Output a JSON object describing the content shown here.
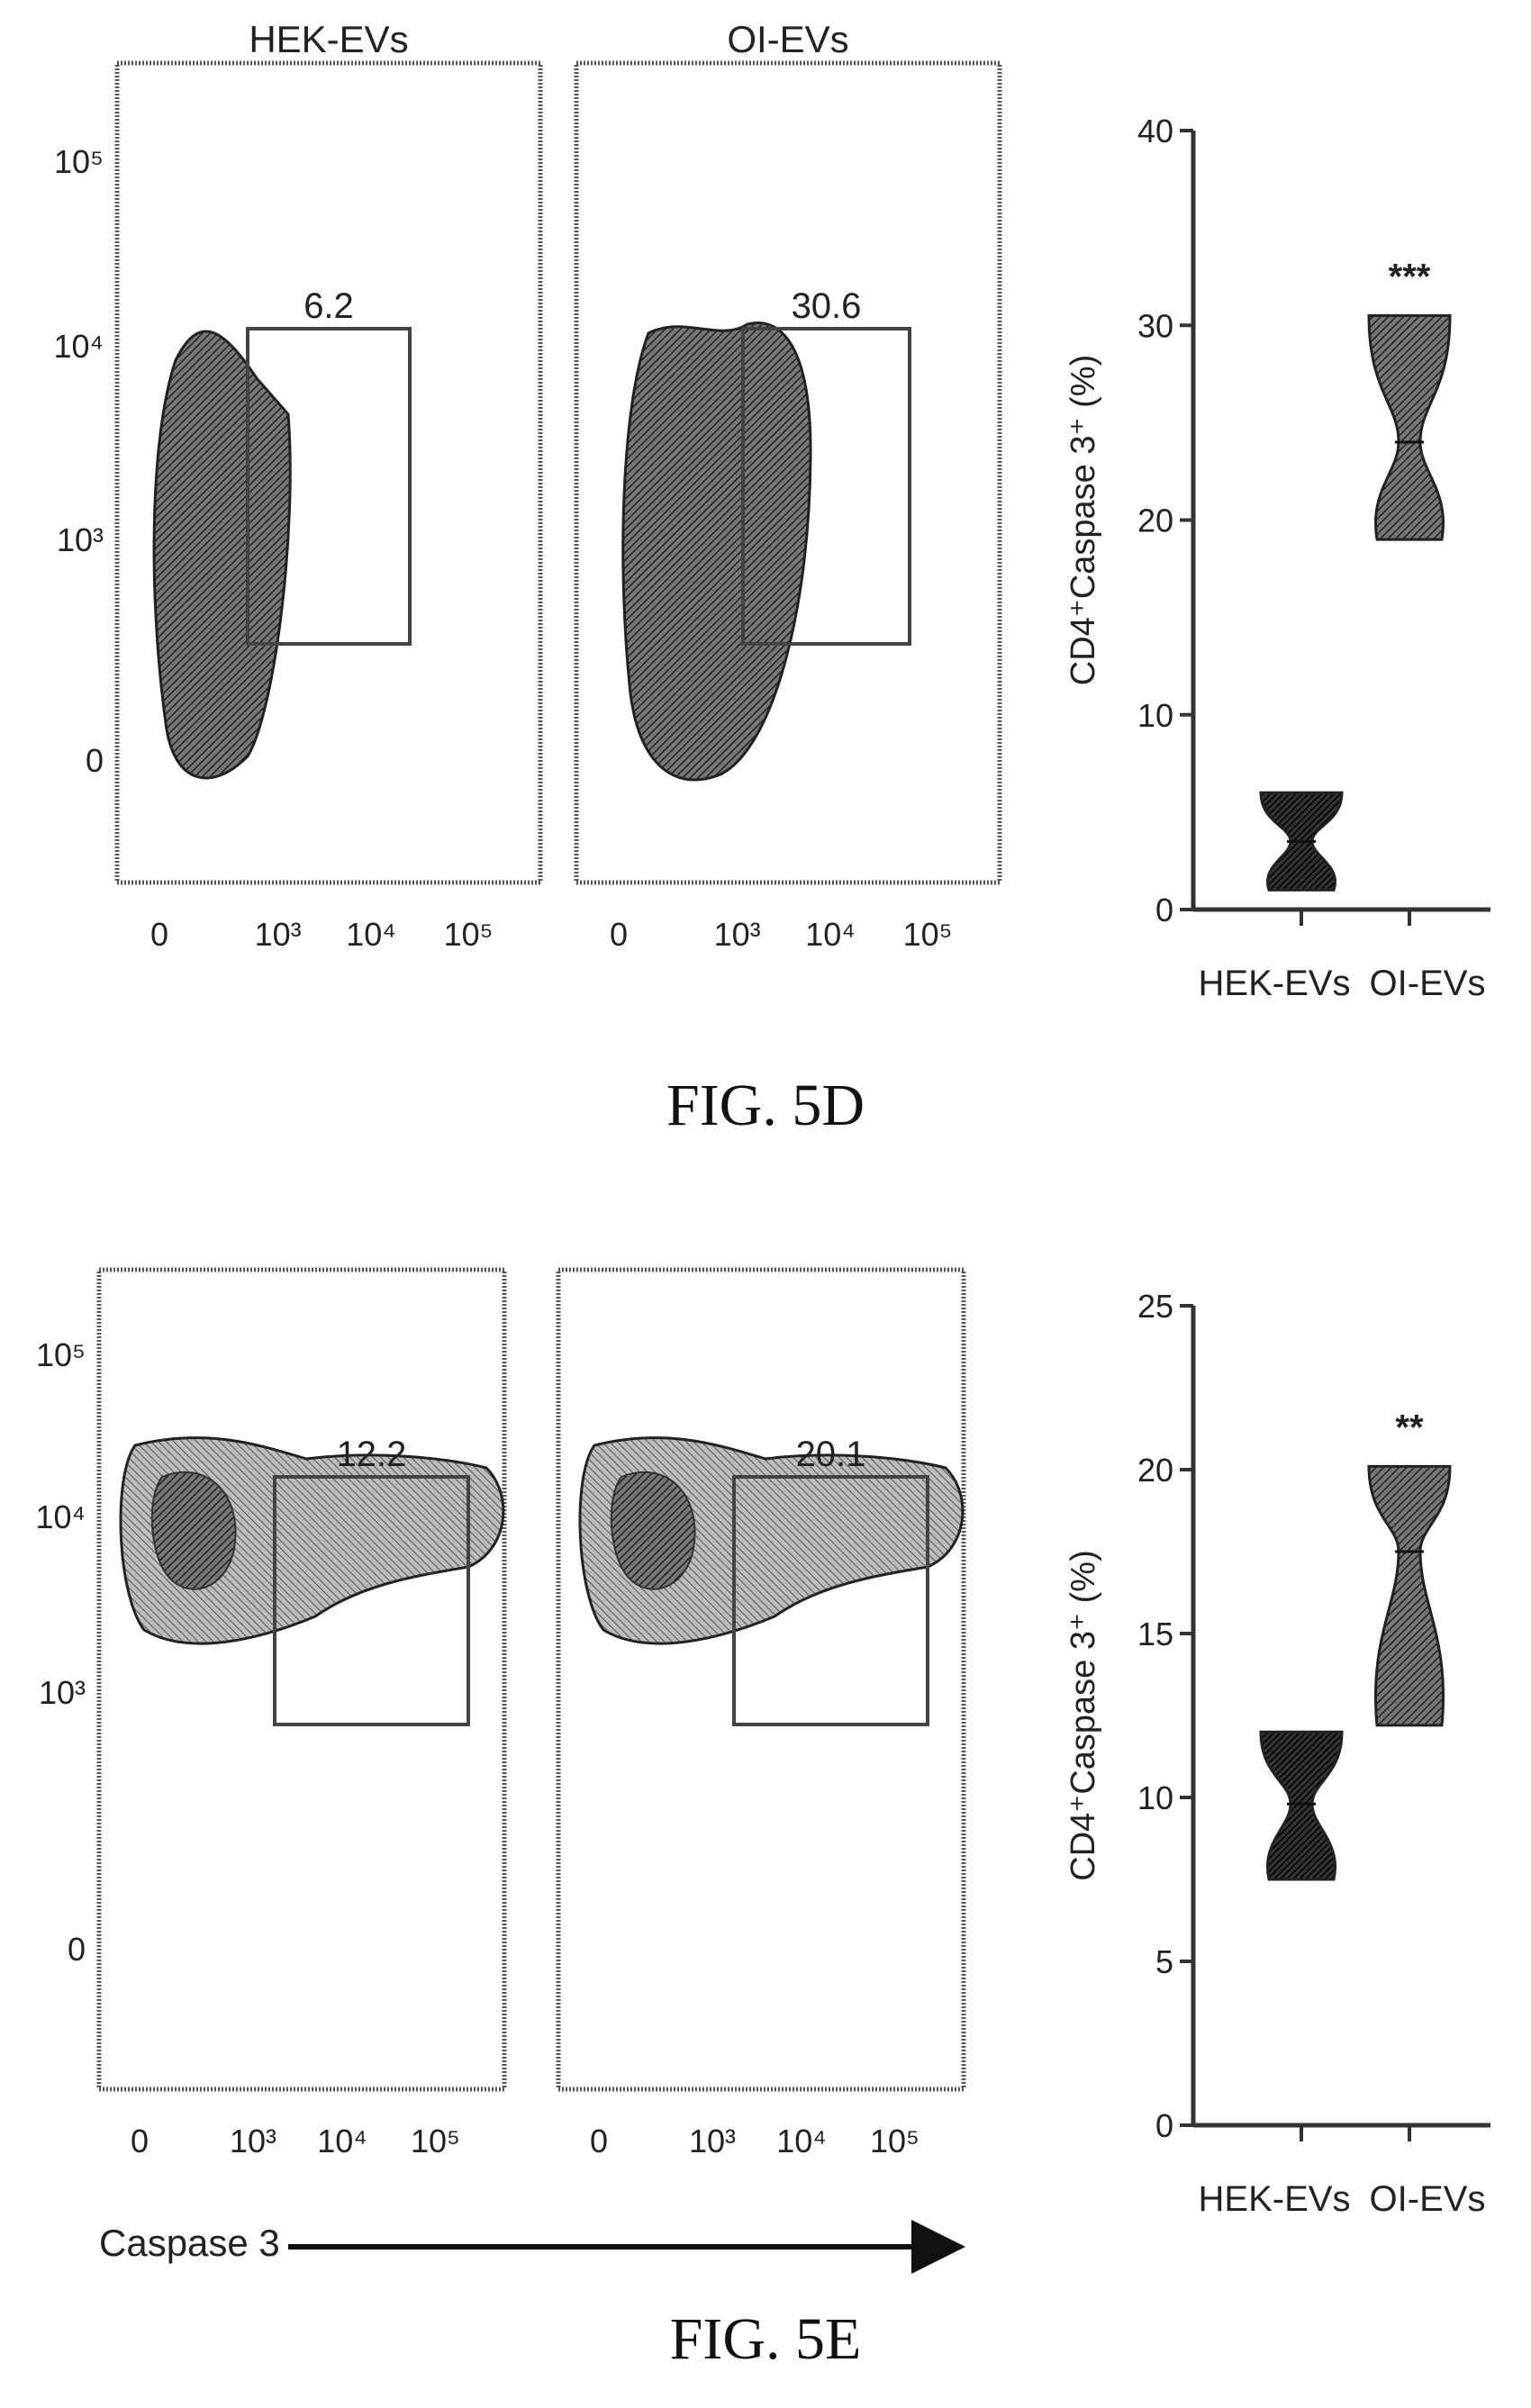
{
  "figures": [
    {
      "caption": "FIG. 5D",
      "flow_panels": [
        {
          "title": "HEK-EVs",
          "gate_value": "6.2",
          "gate_shape": "narrow"
        },
        {
          "title": "OI-EVs",
          "gate_value": "30.6",
          "gate_shape": "narrow"
        }
      ],
      "flow_y_ticks": [
        "10⁵",
        "10⁴",
        "10³",
        "0"
      ],
      "flow_x_ticks": [
        "0",
        "10³",
        "10⁴",
        "10⁵"
      ],
      "violin": {
        "ylabel": "CD4⁺Caspase 3⁺ (%)",
        "significance": "***",
        "yticks": [
          "0",
          "10",
          "20",
          "30",
          "40"
        ]
      }
    },
    {
      "caption": "FIG. 5E",
      "flow_panels": [
        {
          "title": "",
          "gate_value": "12.2",
          "gate_shape": "wide"
        },
        {
          "title": "",
          "gate_value": "20.1",
          "gate_shape": "wide"
        }
      ],
      "flow_y_ticks": [
        "10⁵",
        "10⁴",
        "10³",
        "0"
      ],
      "flow_x_ticks": [
        "0",
        "10³",
        "10⁴",
        "10⁵"
      ],
      "flow_axis_label": "Caspase 3",
      "violin": {
        "ylabel": "CD4⁺Caspase 3⁺ (%)",
        "significance": "**",
        "yticks": [
          "0",
          "5",
          "10",
          "15",
          "20",
          "25"
        ]
      }
    }
  ],
  "chart_data": [
    {
      "type": "violin",
      "figure": "FIG. 5D",
      "ylabel": "CD4⁺Caspase 3⁺ (%)",
      "ylim": [
        0,
        40
      ],
      "categories": [
        "HEK-EVs",
        "OI-EVs"
      ],
      "series": [
        {
          "name": "HEK-EVs",
          "min": 1,
          "max": 6,
          "median": 3.5
        },
        {
          "name": "OI-EVs",
          "min": 19,
          "max": 30.5,
          "median": 24
        }
      ],
      "significance": "***"
    },
    {
      "type": "violin",
      "figure": "FIG. 5E",
      "ylabel": "CD4⁺Caspase 3⁺ (%)",
      "ylim": [
        0,
        25
      ],
      "categories": [
        "HEK-EVs",
        "OI-EVs"
      ],
      "series": [
        {
          "name": "HEK-EVs",
          "min": 7.5,
          "max": 12,
          "median": 9.8
        },
        {
          "name": "OI-EVs",
          "min": 12.2,
          "max": 20.1,
          "median": 17.5
        }
      ],
      "significance": "**"
    }
  ]
}
